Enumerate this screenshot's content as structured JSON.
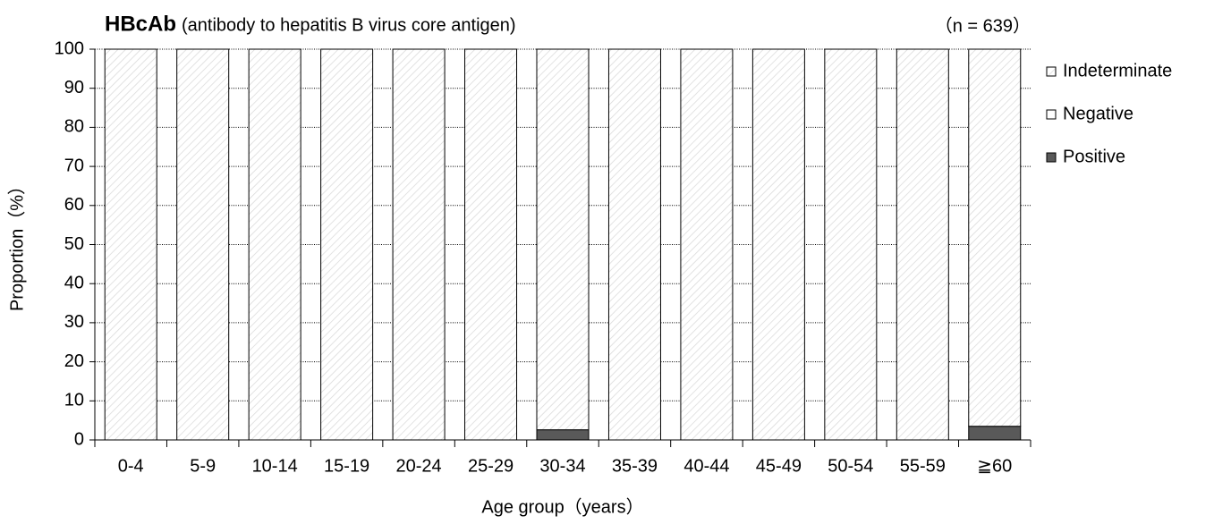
{
  "chart_data": {
    "type": "stacked_bar",
    "title": "HBcAb",
    "subtitle": "(antibody to hepatitis B virus core antigen)",
    "annotation": "（n = 639）",
    "xlabel": "Age group（years）",
    "ylabel": "Proportion（%）",
    "categories": [
      "0-4",
      "5-9",
      "10-14",
      "15-19",
      "20-24",
      "25-29",
      "30-34",
      "35-39",
      "40-44",
      "45-49",
      "50-54",
      "55-59",
      "≧60"
    ],
    "series": [
      {
        "name": "Positive",
        "color": "#595959",
        "values": [
          0,
          0,
          0,
          0,
          0,
          0,
          2.6,
          0,
          0,
          0,
          0,
          0,
          3.5
        ]
      },
      {
        "name": "Negative",
        "color": "#ffffff",
        "values": [
          0,
          0,
          0,
          0,
          0,
          0,
          0,
          0,
          0,
          0,
          0,
          0,
          0
        ]
      },
      {
        "name": "Indeterminate",
        "color": "#d9d9d9",
        "values": [
          100,
          100,
          100,
          100,
          100,
          100,
          97.4,
          100,
          100,
          100,
          100,
          100,
          96.5
        ]
      }
    ],
    "ylim": [
      0,
      100
    ],
    "yticks": [
      0,
      10,
      20,
      30,
      40,
      50,
      60,
      70,
      80,
      90,
      100
    ],
    "grid": true,
    "legend": "right"
  }
}
